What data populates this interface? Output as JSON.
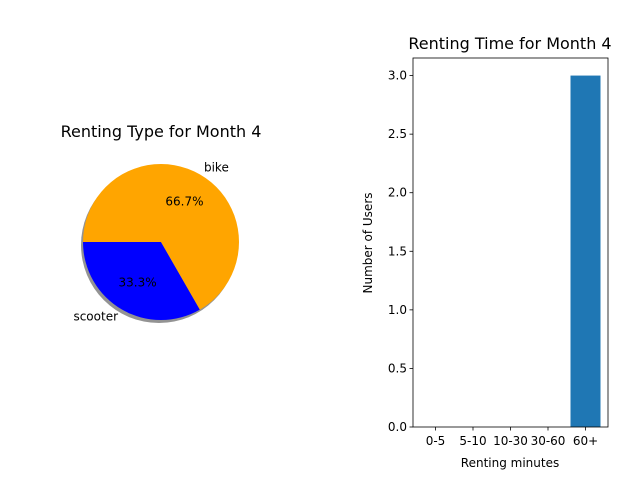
{
  "chart_data": [
    {
      "type": "pie",
      "title": "Renting Type for Month 4",
      "categories": [
        "scooter",
        "bike"
      ],
      "values": [
        33.3,
        66.7
      ],
      "pct_labels": [
        "33.3%",
        "66.7%"
      ],
      "colors": [
        "#0000ff",
        "#ffa500"
      ],
      "shadow": true
    },
    {
      "type": "bar",
      "title": "Renting Time for Month 4",
      "xlabel": "Renting minutes",
      "ylabel": "Number of Users",
      "categories": [
        "0-5",
        "5-10",
        "10-30",
        "30-60",
        "60+"
      ],
      "values": [
        0,
        0,
        0,
        0,
        3
      ],
      "ylim": [
        0,
        3.15
      ],
      "yticks": [
        "0.0",
        "0.5",
        "1.0",
        "1.5",
        "2.0",
        "2.5",
        "3.0"
      ],
      "color": "#1f77b4",
      "grid": false
    }
  ]
}
